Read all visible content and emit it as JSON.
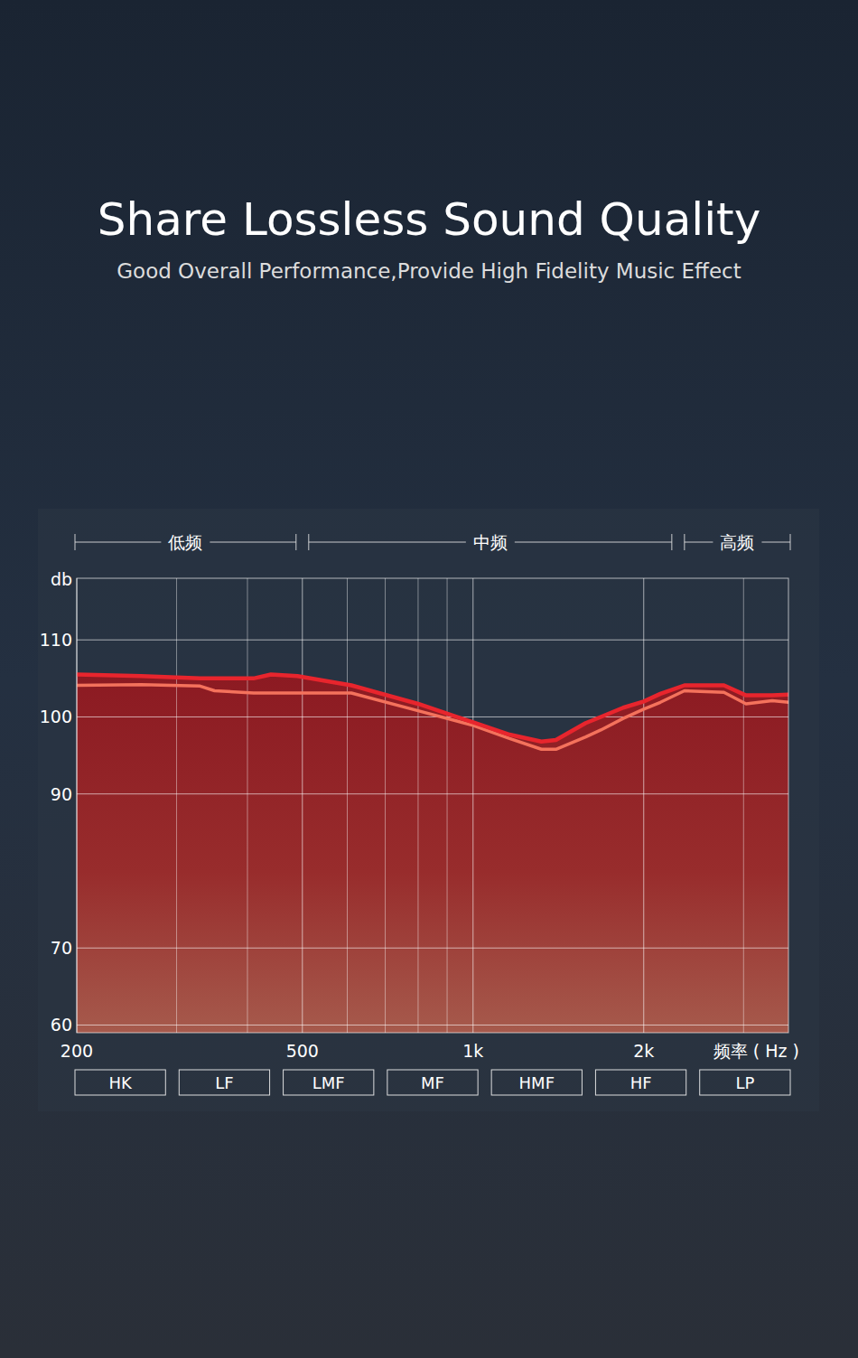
{
  "chart_data": {
    "type": "line",
    "title": "Share Lossless Sound Quality",
    "subtitle": "Good Overall Performance,Provide High Fidelity Music Effect",
    "y_label": "db",
    "x_label": "频率 ( Hz )",
    "x": [
      200,
      260,
      330,
      350,
      410,
      440,
      490,
      610,
      800,
      1000,
      1160,
      1320,
      1400,
      1580,
      1680,
      1840,
      2000,
      2140,
      2360,
      2770,
      3030,
      3370,
      3600
    ],
    "series": [
      {
        "type": "area",
        "color": "#e8252d",
        "values": [
          105.5,
          105.3,
          105.0,
          105.0,
          105.0,
          105.5,
          105.3,
          104.1,
          101.7,
          99.3,
          97.7,
          96.8,
          97.0,
          99.2,
          100.0,
          101.2,
          102.0,
          103.0,
          104.1,
          104.1,
          102.8,
          102.8,
          102.9
        ]
      },
      {
        "type": "line",
        "color": "#f4725c",
        "values": [
          104.1,
          104.2,
          104.0,
          103.4,
          103.1,
          103.1,
          103.1,
          103.1,
          100.8,
          98.9,
          97.2,
          95.8,
          95.8,
          97.4,
          98.3,
          99.8,
          101.0,
          101.9,
          103.4,
          103.2,
          101.7,
          102.1,
          101.9
        ]
      }
    ],
    "xlim": [
      200,
      3600
    ],
    "ylim": [
      59,
      118
    ],
    "xticks": [
      200,
      500,
      {
        "value": 1000,
        "label": "1k"
      },
      {
        "value": 2000,
        "label": "2k"
      }
    ],
    "yticks": [
      60,
      70,
      90,
      100,
      110
    ],
    "log": "x",
    "grid": true,
    "bands": [
      {
        "label": "低频",
        "from": 200,
        "to": 500
      },
      {
        "label": "中频",
        "from": 500,
        "to": 2300
      },
      {
        "label": "高频",
        "from": 2300,
        "to": 3600
      }
    ],
    "band_labels": [
      "HK",
      "LF",
      "LMF",
      "MF",
      "HMF",
      "HF",
      "LP"
    ]
  }
}
